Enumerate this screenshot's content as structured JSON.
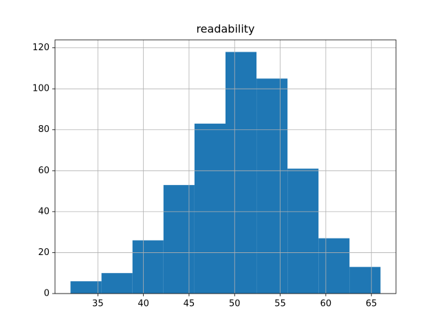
{
  "chart_data": {
    "type": "histogram",
    "title": "readability",
    "bins": [
      32,
      35.4,
      38.8,
      42.2,
      45.6,
      49,
      52.4,
      55.8,
      59.2,
      62.6,
      66
    ],
    "counts": [
      6,
      10,
      26,
      53,
      83,
      118,
      105,
      61,
      27,
      13
    ],
    "color": "#1f77b4",
    "xlim": [
      30.3,
      67.7
    ],
    "xticks": [
      35,
      40,
      45,
      50,
      55,
      60,
      65
    ],
    "ylim": [
      0,
      123.9
    ],
    "yticks": [
      0,
      20,
      40,
      60,
      80,
      100,
      120
    ],
    "grid": true
  }
}
